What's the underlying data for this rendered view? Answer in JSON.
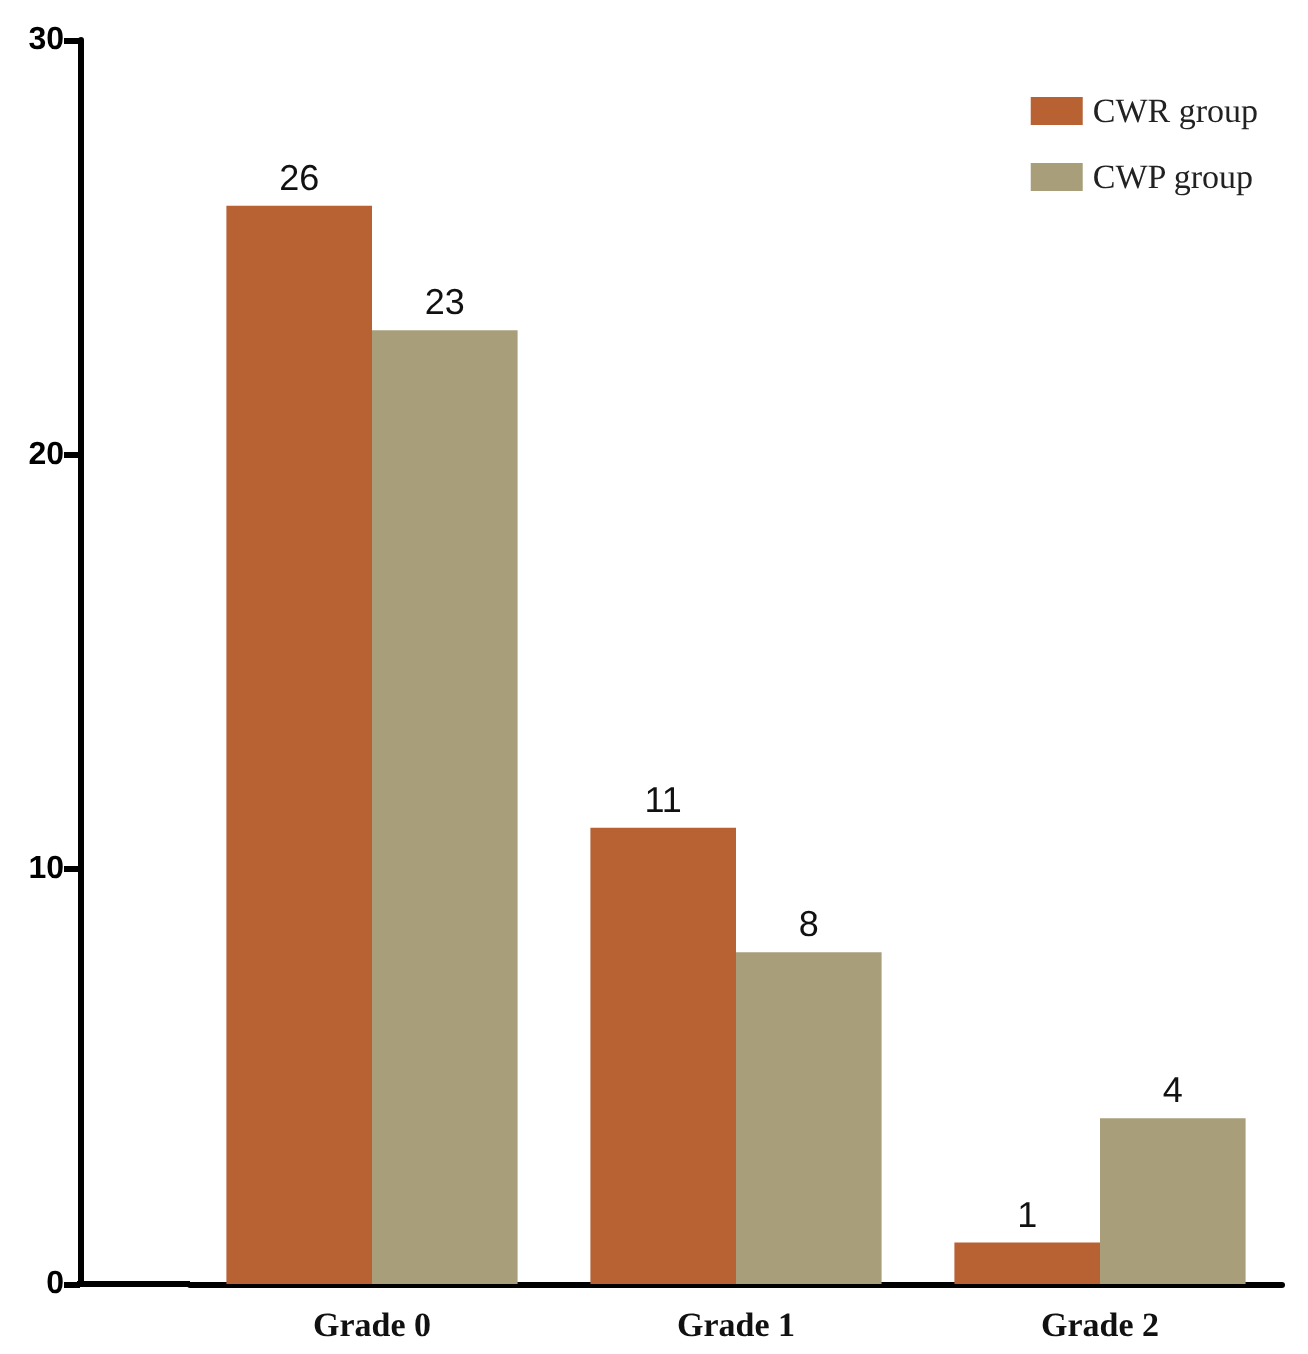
{
  "chart_data": {
    "type": "bar",
    "categories": [
      "Grade 0",
      "Grade 1",
      "Grade 2"
    ],
    "series": [
      {
        "name": "CWR group",
        "color": "#b86234",
        "values": [
          26,
          11,
          1
        ]
      },
      {
        "name": "CWP group",
        "color": "#a89f7a",
        "values": [
          23,
          8,
          4
        ]
      }
    ],
    "ylim": [
      0,
      30
    ],
    "yticks": [
      0,
      10,
      20,
      30
    ],
    "data_labels": true,
    "legend": "top right",
    "grid": false
  }
}
